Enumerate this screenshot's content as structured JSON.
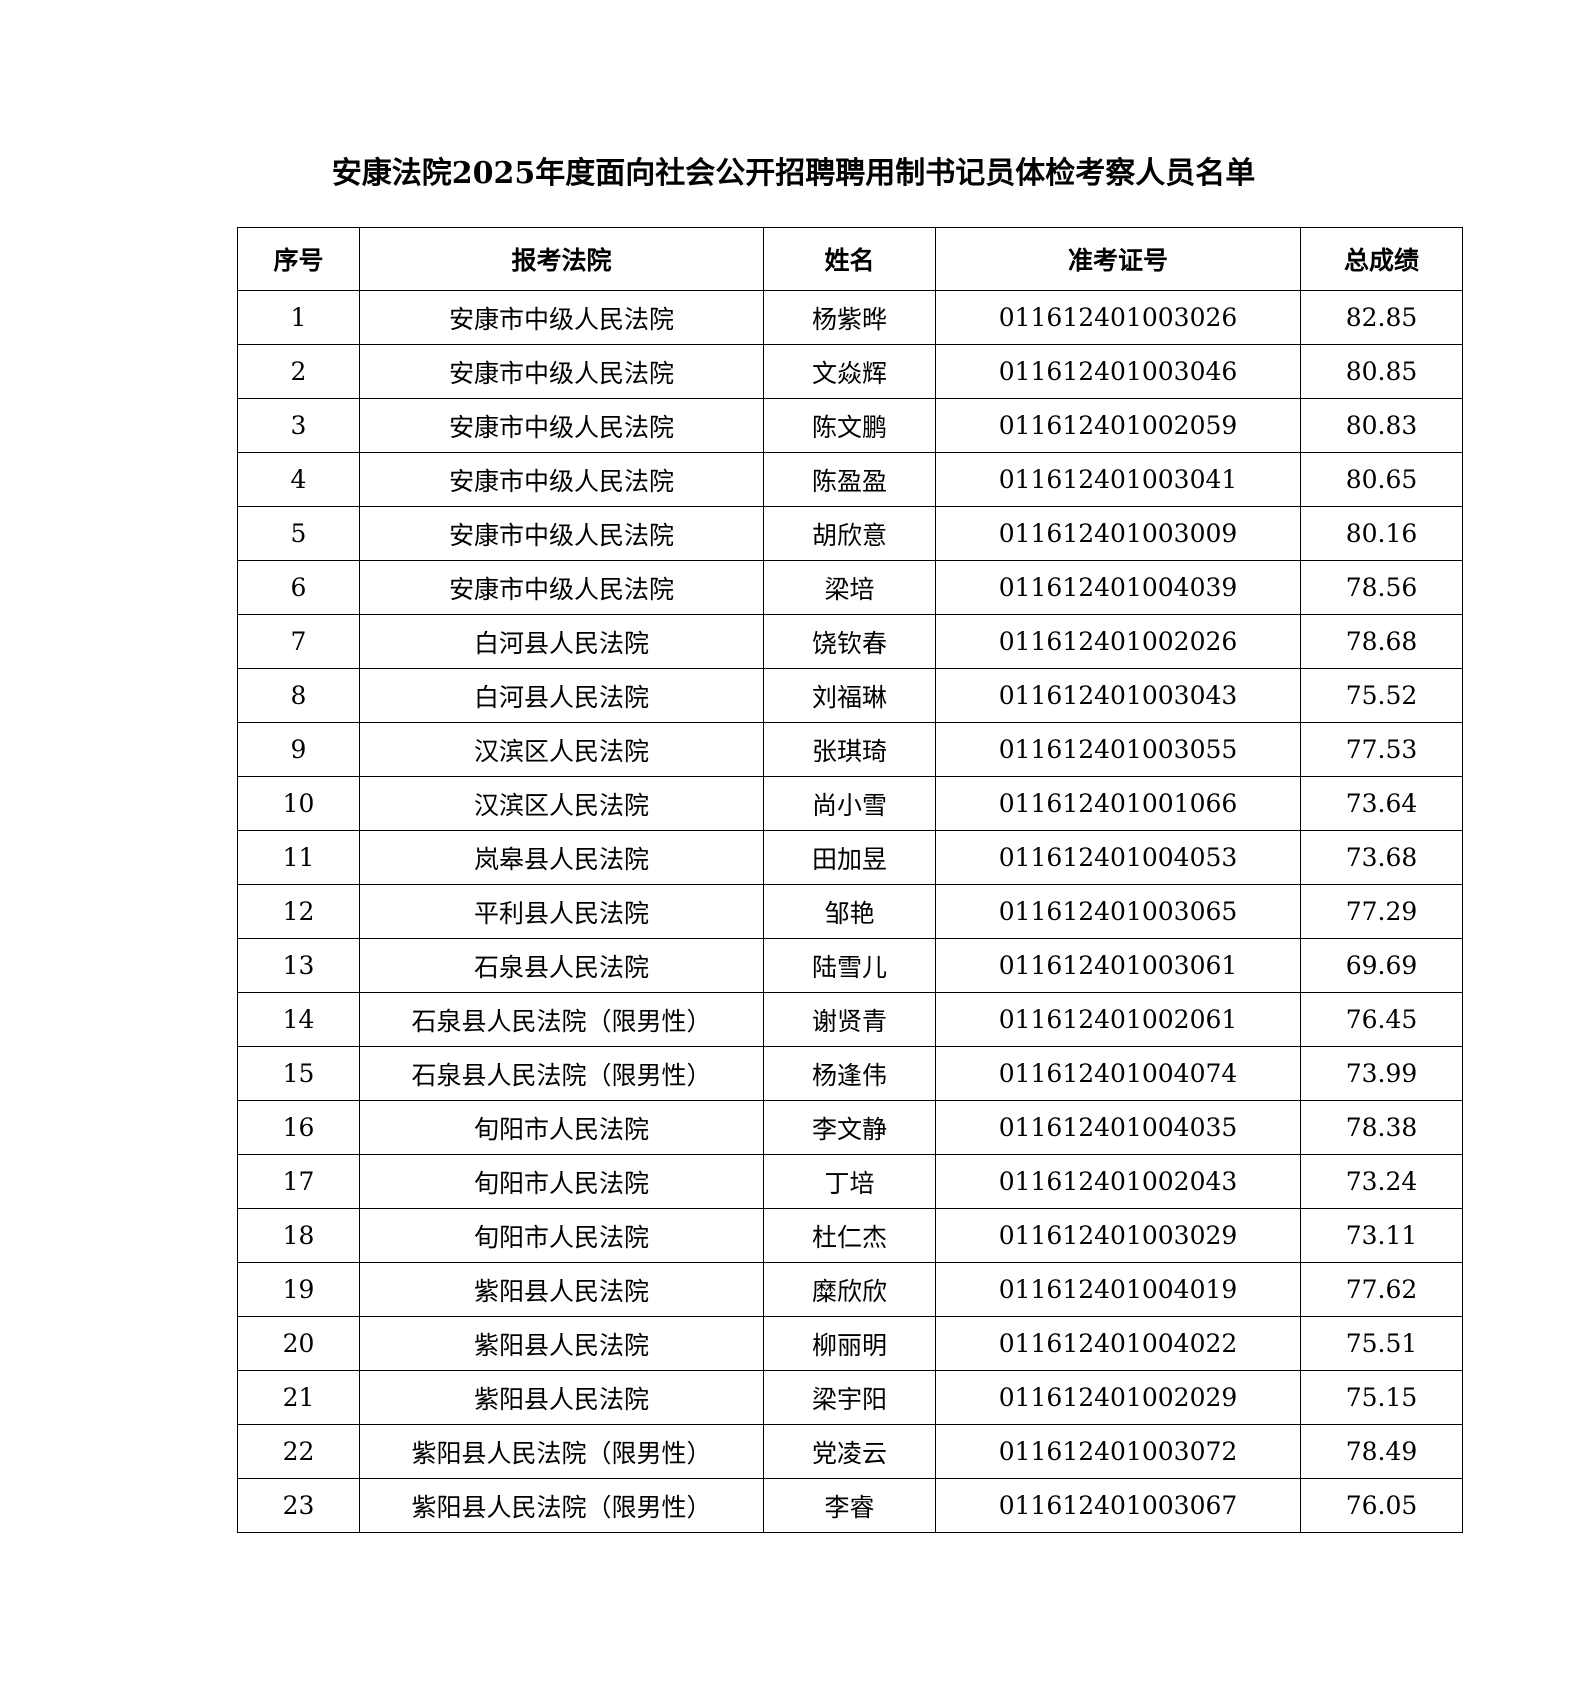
{
  "title": "安康法院2025年度面向社会公开招聘聘用制书记员体检考察人员名单",
  "headers": [
    "序号",
    "报考法院",
    "姓名",
    "准考证号",
    "总成绩"
  ],
  "rows": [
    [
      "1",
      "安康市中级人民法院",
      "杨紫晔",
      "011612401003026",
      "82.85"
    ],
    [
      "2",
      "安康市中级人民法院",
      "文焱辉",
      "011612401003046",
      "80.85"
    ],
    [
      "3",
      "安康市中级人民法院",
      "陈文鹏",
      "011612401002059",
      "80.83"
    ],
    [
      "4",
      "安康市中级人民法院",
      "陈盈盈",
      "011612401003041",
      "80.65"
    ],
    [
      "5",
      "安康市中级人民法院",
      "胡欣意",
      "011612401003009",
      "80.16"
    ],
    [
      "6",
      "安康市中级人民法院",
      "梁培",
      "011612401004039",
      "78.56"
    ],
    [
      "7",
      "白河县人民法院",
      "饶钦春",
      "011612401002026",
      "78.68"
    ],
    [
      "8",
      "白河县人民法院",
      "刘福琳",
      "011612401003043",
      "75.52"
    ],
    [
      "9",
      "汉滨区人民法院",
      "张琪琦",
      "011612401003055",
      "77.53"
    ],
    [
      "10",
      "汉滨区人民法院",
      "尚小雪",
      "011612401001066",
      "73.64"
    ],
    [
      "11",
      "岚皋县人民法院",
      "田加昱",
      "011612401004053",
      "73.68"
    ],
    [
      "12",
      "平利县人民法院",
      "邹艳",
      "011612401003065",
      "77.29"
    ],
    [
      "13",
      "石泉县人民法院",
      "陆雪儿",
      "011612401003061",
      "69.69"
    ],
    [
      "14",
      "石泉县人民法院（限男性）",
      "谢贤青",
      "011612401002061",
      "76.45"
    ],
    [
      "15",
      "石泉县人民法院（限男性）",
      "杨逢伟",
      "011612401004074",
      "73.99"
    ],
    [
      "16",
      "旬阳市人民法院",
      "李文静",
      "011612401004035",
      "78.38"
    ],
    [
      "17",
      "旬阳市人民法院",
      "丁培",
      "011612401002043",
      "73.24"
    ],
    [
      "18",
      "旬阳市人民法院",
      "杜仁杰",
      "011612401003029",
      "73.11"
    ],
    [
      "19",
      "紫阳县人民法院",
      "糜欣欣",
      "011612401004019",
      "77.62"
    ],
    [
      "20",
      "紫阳县人民法院",
      "柳丽明",
      "011612401004022",
      "75.51"
    ],
    [
      "21",
      "紫阳县人民法院",
      "梁宇阳",
      "011612401002029",
      "75.15"
    ],
    [
      "22",
      "紫阳县人民法院（限男性）",
      "党凌云",
      "011612401003072",
      "78.49"
    ],
    [
      "23",
      "紫阳县人民法院（限男性）",
      "李睿",
      "011612401003067",
      "76.05"
    ]
  ]
}
